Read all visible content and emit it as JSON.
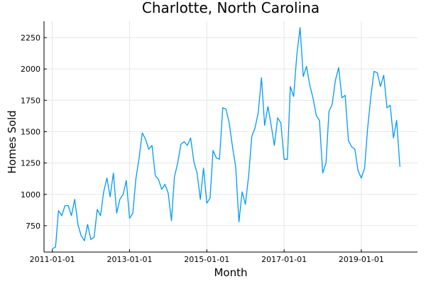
{
  "chart_data": {
    "type": "line",
    "title": "Charlotte, North Carolina",
    "xlabel": "Month",
    "ylabel": "Homes Sold",
    "grid": true,
    "legend": false,
    "x_start": "2011-01-01",
    "x_interval": "month",
    "xlim": [
      "2010-10-15",
      "2020-06-15"
    ],
    "ylim": [
      540,
      2380
    ],
    "x_ticks": [
      "2011-01-01",
      "2013-01-01",
      "2015-01-01",
      "2017-01-01",
      "2019-01-01"
    ],
    "y_ticks": [
      750,
      1000,
      1250,
      1500,
      1750,
      2000,
      2250
    ],
    "series": [
      {
        "color": "#009AF9",
        "values": [
          565,
          580,
          870,
          830,
          910,
          910,
          830,
          960,
          760,
          670,
          630,
          760,
          640,
          660,
          880,
          830,
          1020,
          1130,
          980,
          1170,
          850,
          960,
          1000,
          1110,
          810,
          850,
          1120,
          1290,
          1490,
          1440,
          1360,
          1390,
          1150,
          1120,
          1040,
          1080,
          1010,
          790,
          1140,
          1250,
          1400,
          1420,
          1390,
          1450,
          1260,
          1170,
          960,
          1210,
          930,
          970,
          1350,
          1290,
          1280,
          1690,
          1680,
          1570,
          1380,
          1220,
          780,
          1020,
          920,
          1150,
          1460,
          1530,
          1650,
          1930,
          1550,
          1700,
          1550,
          1390,
          1610,
          1570,
          1280,
          1280,
          1860,
          1780,
          2110,
          2330,
          1940,
          2020,
          1870,
          1770,
          1630,
          1590,
          1170,
          1250,
          1660,
          1720,
          1910,
          2010,
          1770,
          1790,
          1430,
          1380,
          1360,
          1190,
          1130,
          1210,
          1520,
          1780,
          1980,
          1970,
          1860,
          1950,
          1690,
          1710,
          1450,
          1590,
          1220
        ]
      }
    ]
  }
}
